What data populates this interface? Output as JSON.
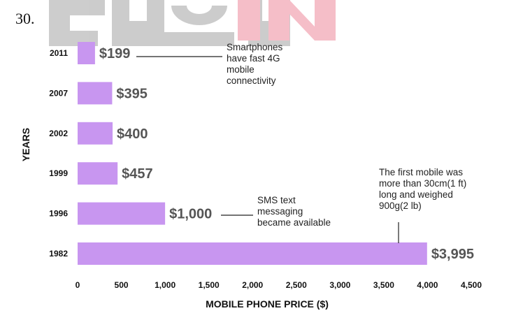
{
  "question_number": "30.",
  "chart_data": {
    "type": "bar",
    "orientation": "horizontal",
    "title": "",
    "xlabel": "MOBILE PHONE PRICE ($)",
    "ylabel": "YEARS",
    "xlim": [
      0,
      4500
    ],
    "xticks": [
      "0",
      "500",
      "1,000",
      "1,500",
      "2,000",
      "2,500",
      "3,000",
      "3,500",
      "4,000",
      "4,500"
    ],
    "categories": [
      "2011",
      "2007",
      "2002",
      "1999",
      "1996",
      "1982"
    ],
    "values": [
      199,
      395,
      400,
      457,
      1000,
      3995
    ],
    "value_labels": [
      "$199",
      "$395",
      "$400",
      "$457",
      "$1,000",
      "$3,995"
    ],
    "bar_color": "#c896f0",
    "label_color": "#555555",
    "annotations": [
      {
        "lines": [
          "Smartphones",
          "have fast 4G",
          "mobile",
          "connectivity"
        ],
        "category": "2011"
      },
      {
        "lines": [
          "SMS text",
          "messaging",
          "became available"
        ],
        "category": "1996"
      },
      {
        "lines": [
          "The first mobile was",
          "more than 30cm(1 ft)",
          "long and weighed",
          "900g(2 lb)"
        ],
        "category": "1982"
      }
    ],
    "grid": false,
    "legend": "none"
  },
  "colors": {
    "watermark_gray": "#bcbcbc",
    "watermark_pink": "#f2a9b6"
  }
}
